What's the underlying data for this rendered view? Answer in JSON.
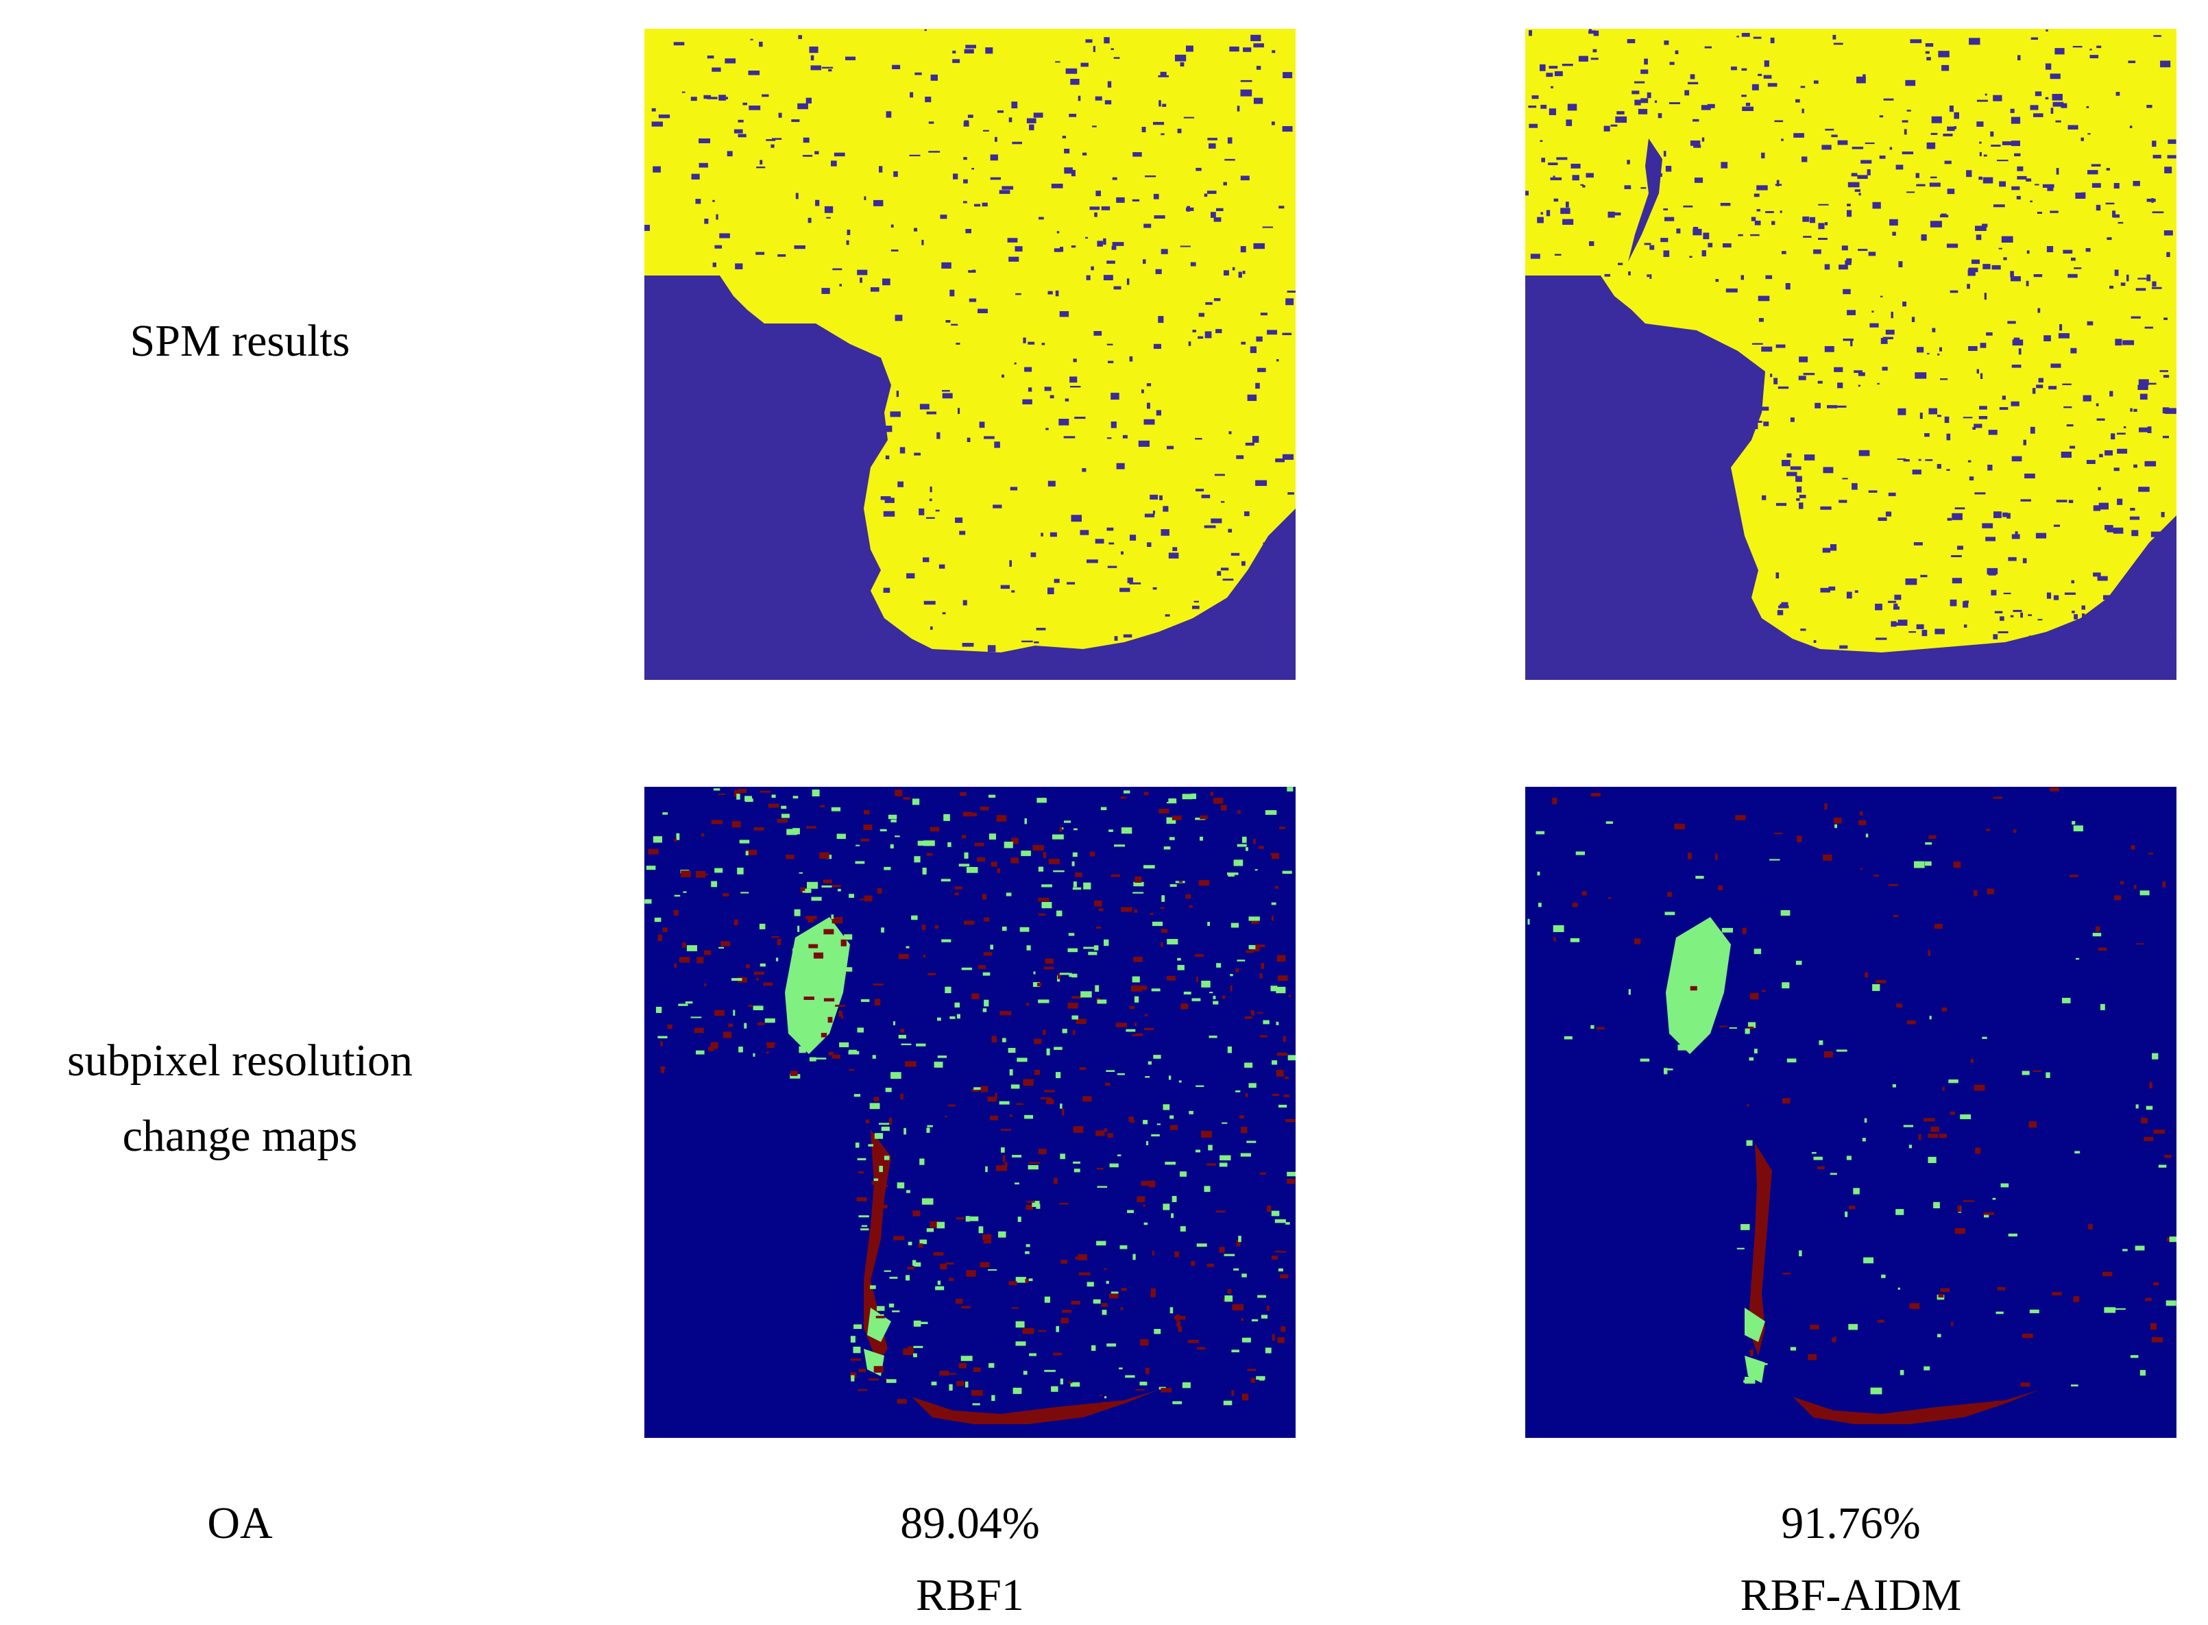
{
  "row_labels": {
    "spm": "SPM results",
    "change_line1": "subpixel resolution",
    "change_line2": "change maps",
    "oa": "OA"
  },
  "columns": [
    {
      "oa": "89.04%",
      "method": "RBF1"
    },
    {
      "oa": "91.76%",
      "method": "RBF-AIDM"
    }
  ],
  "colors": {
    "spm_land": "#f5f512",
    "spm_water": "#3a2b9e",
    "change_bg": "#020388",
    "change_gain": "#80f080",
    "change_loss": "#7d0a0a"
  }
}
